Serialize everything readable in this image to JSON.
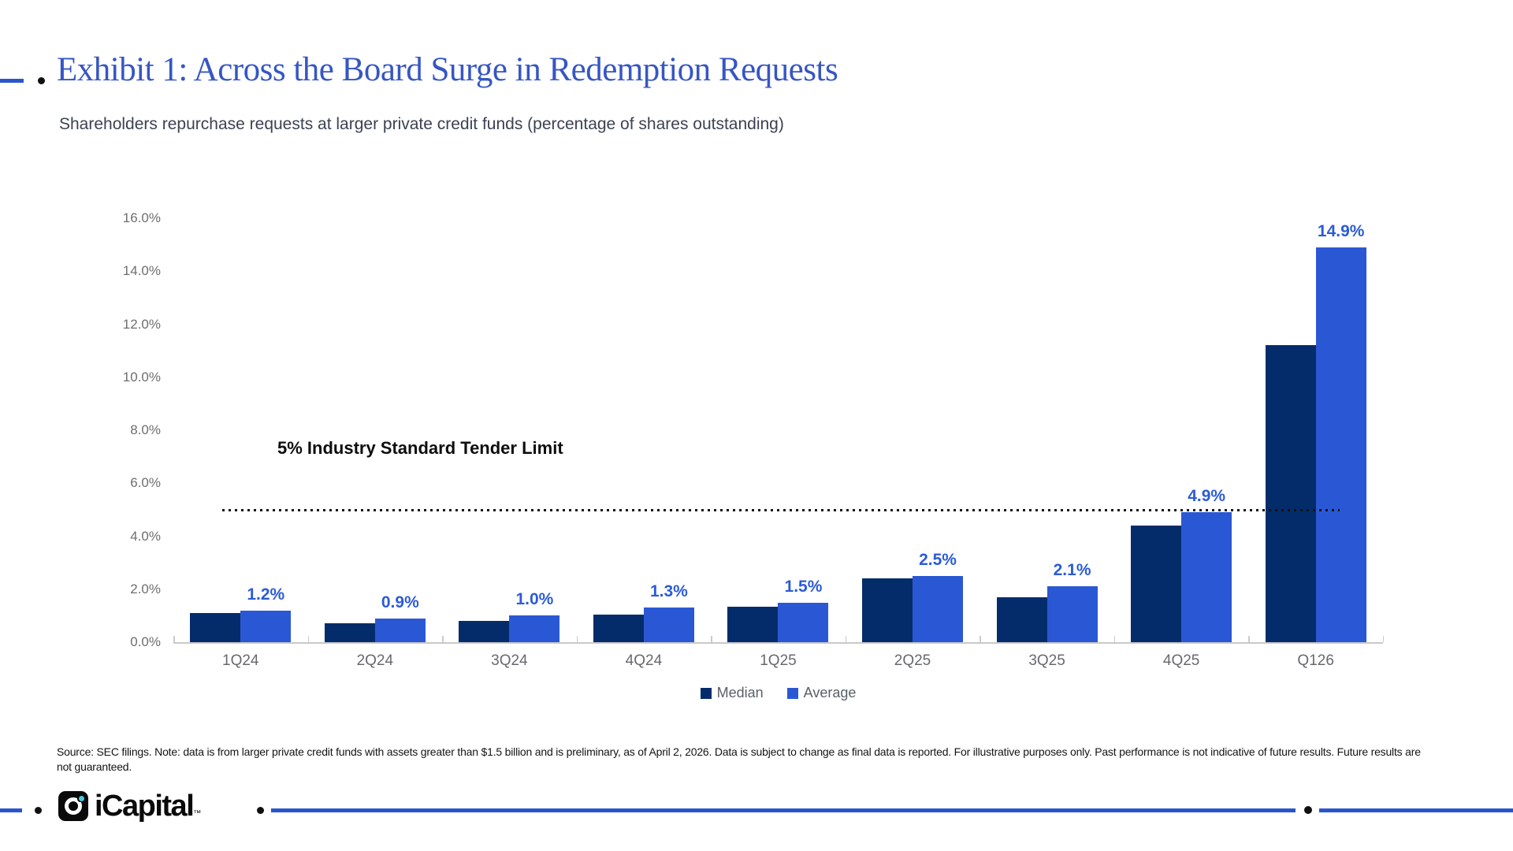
{
  "header": {
    "title": "Exhibit 1: Across the Board Surge in Redemption Requests",
    "subtitle": "Shareholders repurchase requests at larger private credit funds (percentage of shares outstanding)"
  },
  "chart_data": {
    "type": "bar",
    "title": "Exhibit 1: Across the Board Surge in Redemption Requests",
    "subtitle": "Shareholders repurchase requests at larger private credit funds (percentage of shares outstanding)",
    "categories": [
      "1Q24",
      "2Q24",
      "3Q24",
      "4Q24",
      "1Q25",
      "2Q25",
      "3Q25",
      "4Q25",
      "Q126"
    ],
    "series": [
      {
        "name": "Median",
        "color": "#042C6B",
        "values": [
          1.1,
          0.7,
          0.8,
          1.05,
          1.35,
          2.4,
          1.7,
          4.4,
          11.2
        ]
      },
      {
        "name": "Average",
        "color": "#2A58D4",
        "values": [
          1.2,
          0.9,
          1.0,
          1.3,
          1.5,
          2.5,
          2.1,
          4.9,
          14.9
        ]
      }
    ],
    "value_labels": [
      "1.2%",
      "0.9%",
      "1.0%",
      "1.3%",
      "1.5%",
      "2.5%",
      "2.1%",
      "4.9%",
      "14.9%"
    ],
    "ylim": [
      0,
      16
    ],
    "ytick_step": 2,
    "ytick_format_suffix": ".0%",
    "grid": "off",
    "legend_position": "bottom-center",
    "reference_line": {
      "value": 5,
      "label": "5% Industry Standard Tender Limit"
    }
  },
  "footer": {
    "source_note": "Source: SEC filings. Note: data is from larger private credit funds with assets greater than $1.5 billion and is preliminary, as of April 2, 2026. Data is subject to change as final data is reported. For illustrative purposes only. Past performance is not indicative of future results. Future results are not guaranteed.",
    "logo_text": "iCapital",
    "logo_trademark": "™"
  },
  "palette": {
    "accent_blue": "#2B55CC",
    "title_blue": "#3656C4",
    "median_navy": "#042C6B",
    "average_blue": "#2A58D4",
    "label_blue": "#2C5BD6",
    "axis_gray": "#C9C9C9",
    "text_gray": "#66696E",
    "dot_black": "#101010",
    "logo_teal": "#49C9DC"
  }
}
